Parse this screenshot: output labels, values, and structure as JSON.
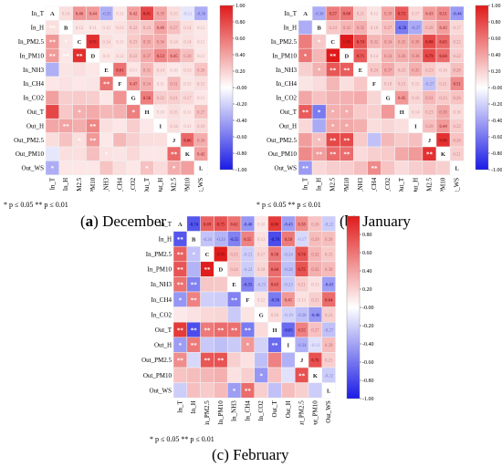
{
  "panels": {
    "december": {
      "letter": "a",
      "month": "December",
      "caption_style": "paren-bold",
      "p_note": "* p ≤ 0.05  ** p ≤ 0.01"
    },
    "january": {
      "letter": "b",
      "month": "January",
      "caption_style": "paren-bold",
      "p_note": "* p ≤ 0.05  ** p ≤ 0.01"
    },
    "february": {
      "letter": "c",
      "month": "February",
      "caption_style": "plain",
      "p_note": "* p ≤ 0.05  ** p ≤ 0.01"
    }
  },
  "colors": {
    "negative": "#1a1ae6",
    "neutral": "#ffffff",
    "positive": "#e01a1a"
  },
  "chart_data": [
    {
      "id": "december",
      "type": "heatmap",
      "variables": [
        "In_T",
        "In_H",
        "In_PM2.5",
        "In_PM10",
        "In_NH3",
        "In_CH4",
        "In_CO2",
        "Out_T",
        "Out_H",
        "Out_PM2.5",
        "Out_PM10",
        "Out_WS"
      ],
      "letters": [
        "A",
        "B",
        "C",
        "D",
        "E",
        "F",
        "G",
        "H",
        "I",
        "J",
        "K",
        "L"
      ],
      "colorbar": {
        "min": -1.0,
        "max": 1.0,
        "ticks": [
          "1.00",
          "0.80",
          "0.60",
          "0.40",
          "0.20",
          "-0.00",
          "-0.20",
          "-0.40",
          "-0.60",
          "-0.80",
          "-1.00"
        ]
      },
      "upper": [
        [
          null,
          "0.14",
          "0.46",
          "0.44",
          "-0.35",
          "0.11",
          "0.42",
          "0.81",
          "0.39",
          "0.15",
          "-0.11",
          "-0.36"
        ],
        [
          null,
          null,
          "0.12",
          "0.11",
          "0.12",
          "0.13",
          "0.22",
          "0.24",
          "0.40",
          "0.27",
          "0.14",
          "0.11"
        ],
        [
          null,
          null,
          null,
          "0.91",
          "0.14",
          "0.11",
          "0.23",
          "0.35",
          "0.36",
          "0.14",
          "0.14",
          "0.11"
        ],
        [
          null,
          null,
          null,
          null,
          "0.11",
          "0.12",
          "0.22",
          "0.37",
          "0.53",
          "0.45",
          "0.28",
          "0.11"
        ],
        [
          null,
          null,
          null,
          null,
          null,
          "0.61",
          "0.11",
          "0.31",
          "0.14",
          "0.10",
          "0.13",
          "0.26"
        ],
        [
          null,
          null,
          null,
          null,
          null,
          null,
          "0.47",
          "0.34",
          "0.11",
          "0.31",
          "0.12",
          "0.15"
        ],
        [
          null,
          null,
          null,
          null,
          null,
          null,
          null,
          "0.56",
          "0.22",
          "0.21",
          "0.17",
          "0.11"
        ],
        [
          null,
          null,
          null,
          null,
          null,
          null,
          null,
          null,
          "0.10",
          "0.15",
          "0.11",
          "0.27"
        ],
        [
          null,
          null,
          null,
          null,
          null,
          null,
          null,
          null,
          null,
          "0.14",
          "0.11",
          "0.16"
        ],
        [
          null,
          null,
          null,
          null,
          null,
          null,
          null,
          null,
          null,
          null,
          "0.66",
          "0.36"
        ],
        [
          null,
          null,
          null,
          null,
          null,
          null,
          null,
          null,
          null,
          null,
          null,
          "0.42"
        ],
        [
          null,
          null,
          null,
          null,
          null,
          null,
          null,
          null,
          null,
          null,
          null,
          null
        ]
      ],
      "lower": [
        [],
        [
          "**"
        ],
        [
          "**",
          "*"
        ],
        [
          "**",
          "**",
          "**"
        ],
        [
          "",
          "",
          "",
          ""
        ],
        [
          "",
          "",
          "",
          "",
          "**"
        ],
        [
          "",
          "",
          "",
          "",
          "",
          ""
        ],
        [
          "",
          "",
          "*",
          "",
          "",
          "",
          "*"
        ],
        [
          "",
          "**",
          "",
          "**",
          "",
          "",
          "",
          ""
        ],
        [
          "",
          "",
          "*",
          "**",
          "",
          "",
          "",
          "",
          ""
        ],
        [
          "",
          "",
          "",
          "",
          "*",
          "",
          "",
          "",
          "",
          "**"
        ],
        [
          "*",
          "",
          "",
          "",
          "",
          "",
          "",
          "*",
          "",
          "*",
          ""
        ]
      ]
    },
    {
      "id": "january",
      "type": "heatmap",
      "variables": [
        "In_T",
        "In_H",
        "In_PM2.5",
        "In_PM10",
        "In_NH3",
        "In_CH4",
        "In_CO2",
        "Out_T",
        "Out_H",
        "Out_PM2.5",
        "Out_PM10",
        "Out_WS"
      ],
      "letters": [
        "A",
        "B",
        "C",
        "D",
        "E",
        "F",
        "G",
        "H",
        "I",
        "J",
        "K",
        "L"
      ],
      "colorbar": {
        "min": -1.0,
        "max": 1.0,
        "ticks": [
          "1.00",
          "0.80",
          "0.60",
          "0.40",
          "0.20",
          "-0.00",
          "-0.20",
          "-0.40",
          "-0.60",
          "-0.80",
          "-1.00"
        ]
      },
      "upper": [
        [
          null,
          "-0.36",
          "0.57",
          "0.60",
          "0.21",
          "0.12",
          "0.39",
          "0.72",
          "0.17",
          "0.43",
          "0.51",
          "-0.44"
        ],
        [
          null,
          null,
          "0.24",
          "0.32",
          "0.35",
          "0.16",
          "0.27",
          "-0.58",
          "-0.37",
          "0.28",
          "0.43",
          "0.17"
        ],
        [
          null,
          null,
          null,
          "1.00",
          "0.74",
          "0.32",
          "0.34",
          "0.35",
          "0.38",
          "0.80",
          "0.65",
          "0.22"
        ],
        [
          null,
          null,
          null,
          null,
          "0.71",
          "0.14",
          "0.34",
          "0.36",
          "0.38",
          "0.79",
          "0.64",
          "0.22"
        ],
        [
          null,
          null,
          null,
          null,
          null,
          "0.24",
          "0.37",
          "0.23",
          "0.35",
          "0.23",
          "0.16",
          "0.28"
        ],
        [
          null,
          null,
          null,
          null,
          null,
          null,
          "0.18",
          "0.21",
          "0.15",
          "-0.27",
          "0.21",
          "0.51"
        ],
        [
          null,
          null,
          null,
          null,
          null,
          null,
          null,
          "0.45",
          "0.18",
          "0.31",
          "0.23",
          "0.26"
        ],
        [
          null,
          null,
          null,
          null,
          null,
          null,
          null,
          null,
          "0.14",
          "0.23",
          "0.38",
          "0.16"
        ],
        [
          null,
          null,
          null,
          null,
          null,
          null,
          null,
          null,
          null,
          "0.28",
          "0.44",
          "0.22"
        ],
        [
          null,
          null,
          null,
          null,
          null,
          null,
          null,
          null,
          null,
          null,
          "0.90",
          "0.26"
        ],
        [
          null,
          null,
          null,
          null,
          null,
          null,
          null,
          null,
          null,
          null,
          null,
          "0.21"
        ],
        [
          null,
          null,
          null,
          null,
          null,
          null,
          null,
          null,
          null,
          null,
          null,
          null
        ]
      ],
      "lower": [
        [],
        [
          ""
        ],
        [
          "",
          "*"
        ],
        [
          "*",
          "",
          "**"
        ],
        [
          "",
          "*",
          "**",
          "**"
        ],
        [
          "",
          "",
          "",
          "",
          ""
        ],
        [
          "",
          "",
          "",
          "",
          "",
          ""
        ],
        [
          "**",
          "*",
          "*",
          "*",
          "",
          "",
          ""
        ],
        [
          "",
          "",
          "*",
          "*",
          "",
          "",
          "",
          ""
        ],
        [
          "",
          "*",
          "**",
          "**",
          "",
          "",
          "",
          "",
          ""
        ],
        [
          "",
          "**",
          "**",
          "**",
          "",
          "",
          "",
          "",
          "",
          "**"
        ],
        [
          "**",
          "",
          "",
          "",
          "",
          "**",
          "",
          "",
          "",
          "",
          ""
        ]
      ]
    },
    {
      "id": "february",
      "type": "heatmap",
      "variables": [
        "In_T",
        "In_H",
        "In_PM2.5",
        "In_PM10",
        "In_NH3",
        "In_CH4",
        "In_CO2",
        "Out_T",
        "Out_H",
        "Out_PM2.5",
        "Out_PM10",
        "Out_WS"
      ],
      "letters": [
        "A",
        "B",
        "C",
        "D",
        "E",
        "F",
        "G",
        "H",
        "I",
        "J",
        "K",
        "L"
      ],
      "colorbar": {
        "min": -1.0,
        "max": 1.0,
        "ticks": [
          "0.80",
          "0.60",
          "0.40",
          "0.20",
          "-0.00",
          "-0.20",
          "-0.40",
          "-0.60",
          "-0.80",
          "-1.00"
        ]
      },
      "upper": [
        [
          null,
          "-0.74",
          "0.69",
          "0.75",
          "0.62",
          "-0.46",
          "0.10",
          "0.86",
          "-0.43",
          "0.50",
          "0.26",
          "-0.22"
        ],
        [
          null,
          null,
          "-0.26",
          "-0.33",
          "-0.55",
          "0.55",
          "0.13",
          "-0.78",
          "0.58",
          "-0.17",
          "0.29",
          "0.28"
        ],
        [
          null,
          null,
          null,
          "0.99",
          "0.25",
          "-0.21",
          "0.17",
          "0.58",
          "-0.24",
          "0.74",
          "0.32",
          "0.23"
        ],
        [
          null,
          null,
          null,
          null,
          "0.24",
          "-0.22",
          "0.18",
          "0.64",
          "-0.28",
          "0.75",
          "0.35",
          "0.30"
        ],
        [
          null,
          null,
          null,
          null,
          null,
          "-0.55",
          "-0.23",
          "0.63",
          "-0.23",
          "0.21",
          "0.13",
          "-0.43"
        ],
        [
          null,
          null,
          null,
          null,
          null,
          null,
          "0.12",
          "-0.58",
          "0.45",
          "0.13",
          "0.21",
          "0.64"
        ],
        [
          null,
          null,
          null,
          null,
          null,
          null,
          null,
          "0.16",
          "-0.19",
          "-0.28",
          "-0.46",
          "0.21"
        ],
        [
          null,
          null,
          null,
          null,
          null,
          null,
          null,
          null,
          "-0.65",
          "0.55",
          "0.27",
          "-0.27"
        ],
        [
          null,
          null,
          null,
          null,
          null,
          null,
          null,
          null,
          null,
          "-0.34",
          "-0.13",
          "0.29"
        ],
        [
          null,
          null,
          null,
          null,
          null,
          null,
          null,
          null,
          null,
          null,
          "0.76",
          "0.21"
        ],
        [
          null,
          null,
          null,
          null,
          null,
          null,
          null,
          null,
          null,
          null,
          null,
          "-0.22"
        ],
        [
          null,
          null,
          null,
          null,
          null,
          null,
          null,
          null,
          null,
          null,
          null,
          null
        ]
      ],
      "lower": [
        [],
        [
          "**"
        ],
        [
          "**",
          "*"
        ],
        [
          "**",
          "",
          "**"
        ],
        [
          "**",
          "**",
          "",
          ""
        ],
        [
          "*",
          "**",
          "",
          "",
          "**"
        ],
        [
          "",
          "",
          "",
          "",
          "",
          ""
        ],
        [
          "**",
          "**",
          "**",
          "**",
          "**",
          "**",
          ""
        ],
        [
          "*",
          "**",
          "",
          "",
          "",
          "*",
          "",
          "**"
        ],
        [
          "**",
          "",
          "**",
          "**",
          "",
          "",
          "",
          "",
          ""
        ],
        [
          "",
          "",
          "",
          "",
          "",
          "",
          "*",
          "",
          "",
          "**"
        ],
        [
          "",
          "",
          "",
          "",
          "*",
          "**",
          "",
          "",
          "",
          "",
          ""
        ]
      ]
    }
  ]
}
